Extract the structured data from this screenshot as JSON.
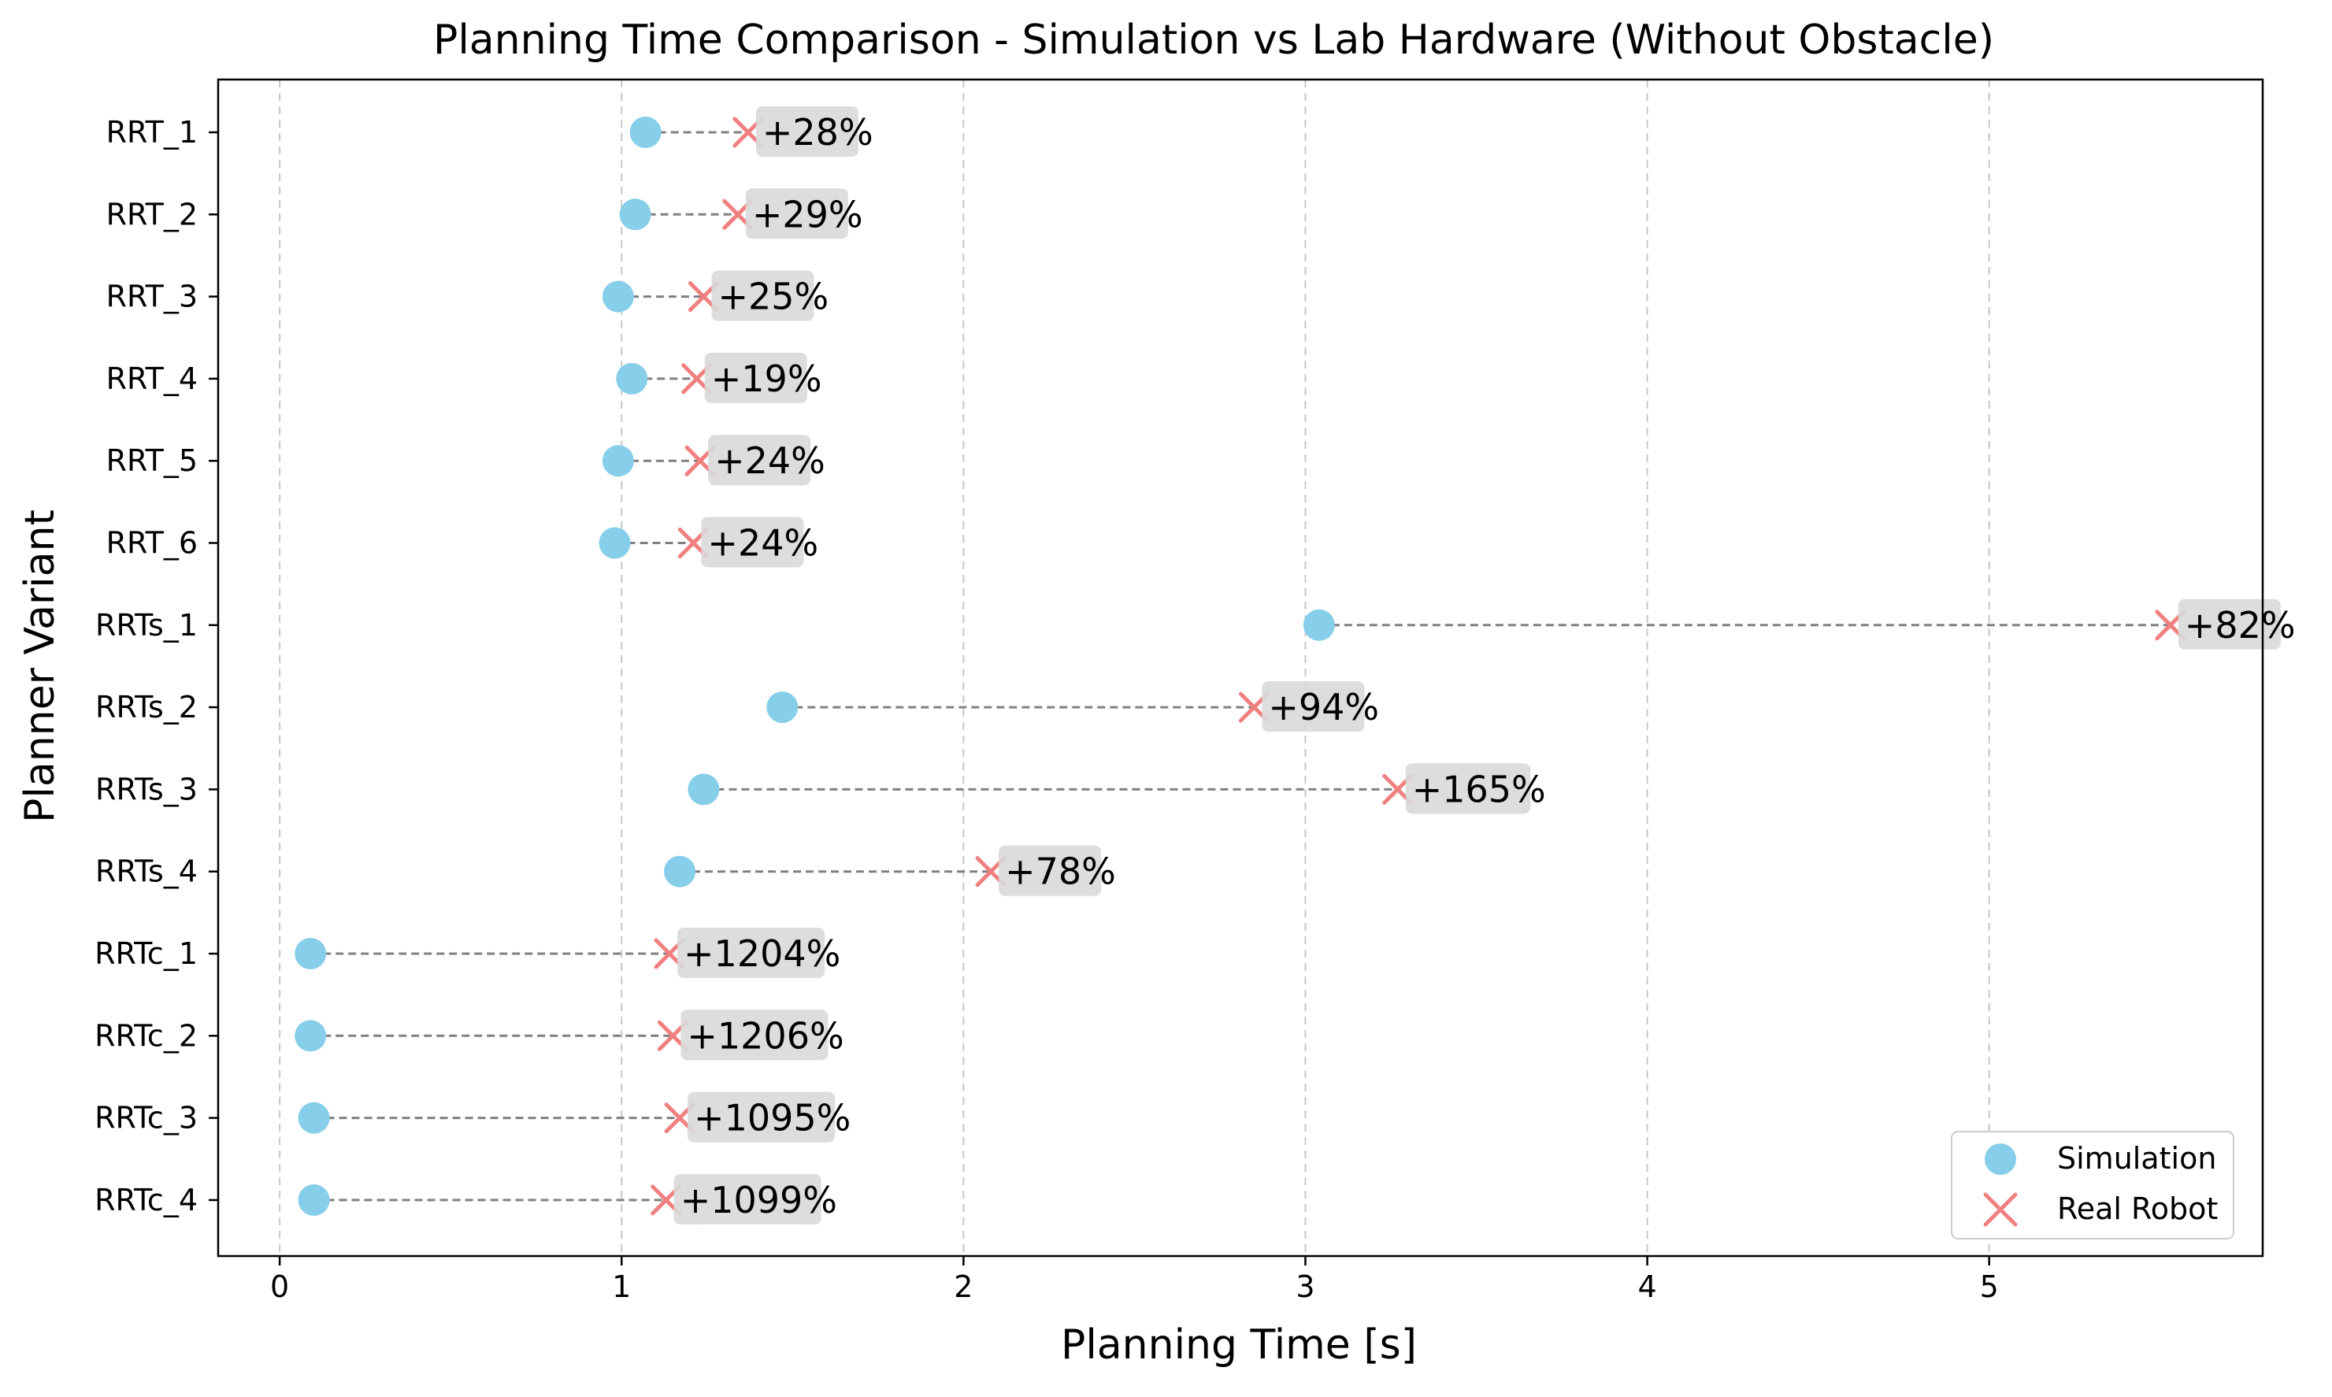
{
  "chart_data": {
    "type": "dumbbell",
    "title": "Planning Time Comparison - Simulation vs Lab Hardware (Without Obstacle)",
    "xlabel": "Planning Time [s]",
    "ylabel": "Planner Variant",
    "xlim": [
      -0.18,
      5.8
    ],
    "xticks": [
      0,
      1,
      2,
      3,
      4,
      5
    ],
    "xtick_labels": [
      "0",
      "1",
      "2",
      "3",
      "4",
      "5"
    ],
    "grid": "x-axis dashed vertical",
    "categories": [
      "RRT_1",
      "RRT_2",
      "RRT_3",
      "RRT_4",
      "RRT_5",
      "RRT_6",
      "RRTs_1",
      "RRTs_2",
      "RRTs_3",
      "RRTs_4",
      "RRTc_1",
      "RRTc_2",
      "RRTc_3",
      "RRTc_4"
    ],
    "series": [
      {
        "name": "Simulation",
        "marker": "circle",
        "color": "#87CEEB",
        "values": [
          1.07,
          1.04,
          0.99,
          1.03,
          0.99,
          0.98,
          3.04,
          1.47,
          1.24,
          1.17,
          0.09,
          0.09,
          0.1,
          0.1
        ]
      },
      {
        "name": "Real Robot",
        "marker": "x",
        "color": "#F08080",
        "values": [
          1.37,
          1.34,
          1.24,
          1.22,
          1.23,
          1.21,
          5.53,
          2.85,
          3.27,
          2.08,
          1.14,
          1.15,
          1.17,
          1.13
        ]
      }
    ],
    "annotations": [
      "+28%",
      "+29%",
      "+25%",
      "+19%",
      "+24%",
      "+24%",
      "+82%",
      "+94%",
      "+165%",
      "+78%",
      "+1204%",
      "+1206%",
      "+1095%",
      "+1099%"
    ],
    "connector_color": "#808080",
    "annotation_bg_color": "#D9D9D9",
    "legend_position": "lower-right"
  }
}
